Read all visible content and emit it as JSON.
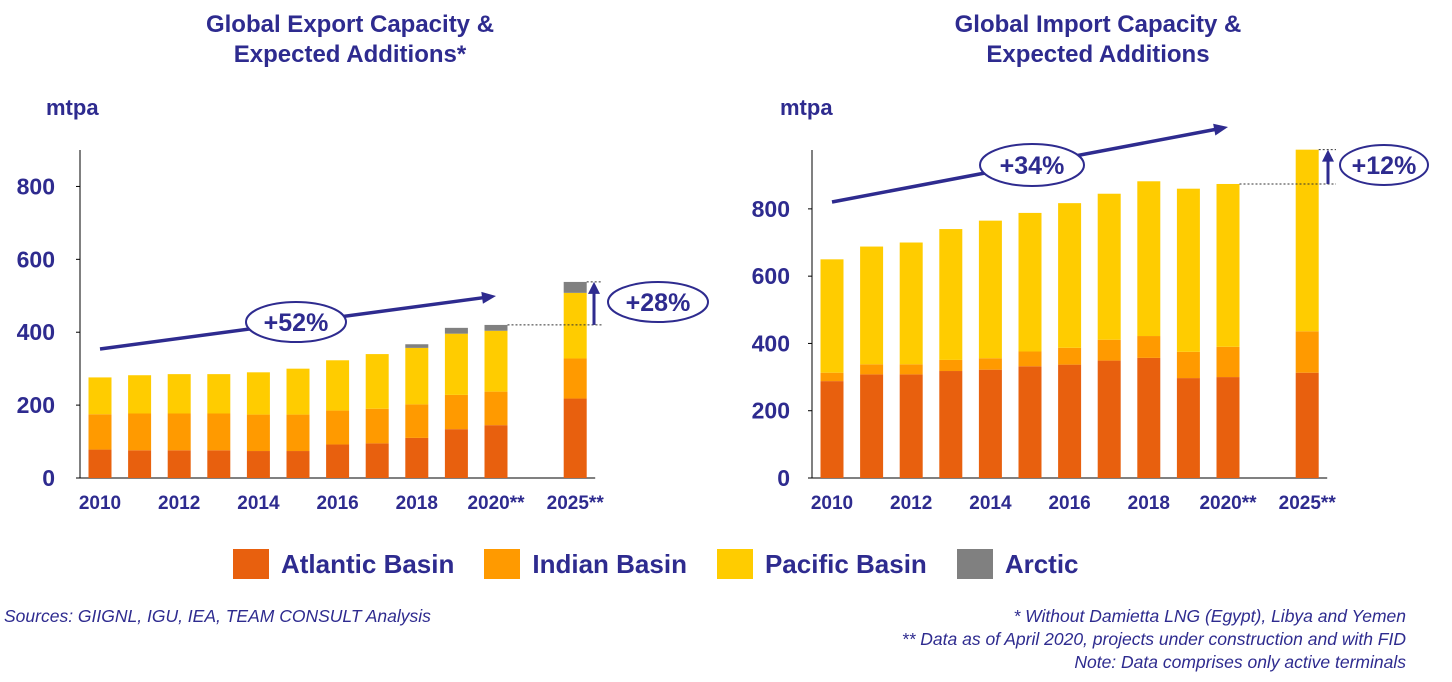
{
  "chart_data": [
    {
      "type": "bar",
      "stacked": true,
      "title": "Global Export Capacity & Expected Additions*",
      "title_lines": [
        "Global Export Capacity &",
        "Expected Additions*"
      ],
      "ylabel": "mtpa",
      "ylim": [
        0,
        900
      ],
      "yticks": [
        0,
        200,
        400,
        600,
        800
      ],
      "categories": [
        "2010",
        "2011",
        "2012",
        "2013",
        "2014",
        "2015",
        "2016",
        "2017",
        "2018",
        "2019",
        "2020**",
        "2025**"
      ],
      "tick_labels": [
        "2010",
        "",
        "2012",
        "",
        "2014",
        "",
        "2016",
        "",
        "2018",
        "",
        "2020**",
        "2025**"
      ],
      "series": [
        {
          "name": "Atlantic Basin",
          "values": [
            78,
            76,
            76,
            76,
            74,
            74,
            92,
            95,
            110,
            134,
            145,
            218
          ]
        },
        {
          "name": "Indian Basin",
          "values": [
            97,
            101,
            101,
            101,
            100,
            100,
            93,
            95,
            92,
            94,
            92,
            110
          ]
        },
        {
          "name": "Pacific Basin",
          "values": [
            101,
            105,
            108,
            108,
            116,
            126,
            138,
            150,
            155,
            168,
            167,
            180
          ]
        },
        {
          "name": "Arctic",
          "values": [
            0,
            0,
            0,
            0,
            0,
            0,
            0,
            0,
            10,
            16,
            16,
            30
          ]
        }
      ],
      "trend_label": "+52%",
      "addition_label": "+28%",
      "grid": false
    },
    {
      "type": "bar",
      "stacked": true,
      "title": "Global Import Capacity & Expected Additions",
      "title_lines": [
        "Global Import Capacity &",
        "Expected Additions"
      ],
      "ylabel": "mtpa",
      "ylim": [
        0,
        975
      ],
      "yticks": [
        0,
        200,
        400,
        600,
        800
      ],
      "categories": [
        "2010",
        "2011",
        "2012",
        "2013",
        "2014",
        "2015",
        "2016",
        "2017",
        "2018",
        "2019",
        "2020**",
        "2025**"
      ],
      "tick_labels": [
        "2010",
        "",
        "2012",
        "",
        "2014",
        "",
        "2016",
        "",
        "2018",
        "",
        "2020**",
        "2025**"
      ],
      "series": [
        {
          "name": "Atlantic Basin",
          "values": [
            288,
            308,
            308,
            318,
            322,
            332,
            337,
            349,
            357,
            297,
            300,
            313
          ]
        },
        {
          "name": "Indian Basin",
          "values": [
            25,
            30,
            30,
            33,
            34,
            44,
            50,
            62,
            65,
            78,
            90,
            123
          ]
        },
        {
          "name": "Pacific Basin",
          "values": [
            337,
            350,
            362,
            389,
            409,
            412,
            430,
            434,
            460,
            485,
            484,
            540
          ]
        },
        {
          "name": "Arctic",
          "values": [
            0,
            0,
            0,
            0,
            0,
            0,
            0,
            0,
            0,
            0,
            0,
            0
          ]
        }
      ],
      "trend_label": "+34%",
      "addition_label": "+12%",
      "grid": false
    }
  ],
  "legend": [
    {
      "label": "Atlantic Basin",
      "color": "#E8600E"
    },
    {
      "label": "Indian Basin",
      "color": "#FF9A00"
    },
    {
      "label": "Pacific Basin",
      "color": "#FFCC00"
    },
    {
      "label": "Arctic",
      "color": "#808080"
    }
  ],
  "colors": {
    "Atlantic Basin": "#E8600E",
    "Indian Basin": "#FF9A00",
    "Pacific Basin": "#FFCC00",
    "Arctic": "#808080",
    "text": "#2E2B8F"
  },
  "footer": {
    "sources": "Sources: GIIGNL, IGU, IEA, TEAM CONSULT Analysis",
    "note1": "* Without Damietta LNG (Egypt), Libya and Yemen",
    "note2": "** Data as of April 2020, projects under construction and with FID",
    "note3": "Note: Data comprises only active terminals"
  }
}
